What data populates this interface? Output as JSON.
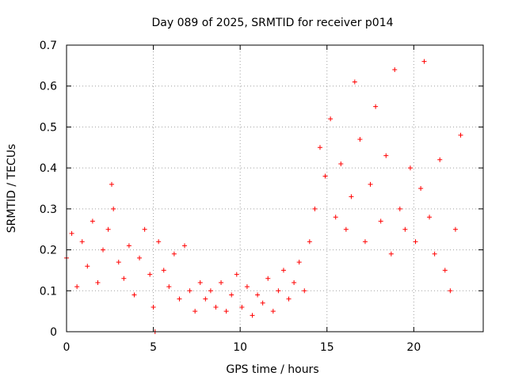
{
  "chart_data": {
    "type": "scatter",
    "title": "Day 089 of 2025, SRMTID for receiver p014",
    "xlabel": "GPS time / hours",
    "ylabel": "SRMTID / TECUs",
    "xlim": [
      0,
      24
    ],
    "ylim": [
      0,
      0.7
    ],
    "xticks": [
      0,
      5,
      10,
      15,
      20
    ],
    "xtick_labels": [
      "0",
      "5",
      "10",
      "15",
      "20"
    ],
    "yticks": [
      0,
      0.1,
      0.2,
      0.3,
      0.4,
      0.5,
      0.6,
      0.7
    ],
    "ytick_labels": [
      "0",
      "0.1",
      "0.2",
      "0.3",
      "0.4",
      "0.5",
      "0.6",
      "0.7"
    ],
    "grid": true,
    "marker": "plus",
    "color": "#ff0000",
    "series": [
      {
        "name": "SRMTID",
        "x": [
          0.0,
          0.3,
          0.6,
          0.9,
          1.2,
          1.5,
          1.8,
          2.1,
          2.4,
          2.6,
          2.7,
          3.0,
          3.3,
          3.6,
          3.9,
          4.2,
          4.5,
          4.8,
          5.0,
          5.1,
          5.3,
          5.6,
          5.9,
          6.2,
          6.5,
          6.8,
          7.1,
          7.4,
          7.7,
          8.0,
          8.3,
          8.6,
          8.9,
          9.2,
          9.5,
          9.8,
          10.1,
          10.4,
          10.7,
          11.0,
          11.3,
          11.6,
          11.9,
          12.2,
          12.5,
          12.8,
          13.1,
          13.4,
          13.7,
          14.0,
          14.3,
          14.6,
          14.9,
          15.2,
          15.5,
          15.8,
          16.1,
          16.4,
          16.6,
          16.9,
          17.2,
          17.5,
          17.8,
          18.1,
          18.4,
          18.7,
          18.9,
          19.2,
          19.5,
          19.8,
          20.1,
          20.4,
          20.6,
          20.9,
          21.2,
          21.5,
          21.8,
          22.1,
          22.4,
          22.7
        ],
        "y": [
          0.18,
          0.24,
          0.11,
          0.22,
          0.16,
          0.27,
          0.12,
          0.2,
          0.25,
          0.36,
          0.3,
          0.17,
          0.13,
          0.21,
          0.09,
          0.18,
          0.25,
          0.14,
          0.06,
          0.0,
          0.22,
          0.15,
          0.11,
          0.19,
          0.08,
          0.21,
          0.1,
          0.05,
          0.12,
          0.08,
          0.1,
          0.06,
          0.12,
          0.05,
          0.09,
          0.14,
          0.06,
          0.11,
          0.04,
          0.09,
          0.07,
          0.13,
          0.05,
          0.1,
          0.15,
          0.08,
          0.12,
          0.17,
          0.1,
          0.22,
          0.3,
          0.45,
          0.38,
          0.52,
          0.28,
          0.41,
          0.25,
          0.33,
          0.61,
          0.47,
          0.22,
          0.36,
          0.55,
          0.27,
          0.43,
          0.19,
          0.64,
          0.3,
          0.25,
          0.4,
          0.22,
          0.35,
          0.66,
          0.28,
          0.19,
          0.42,
          0.15,
          0.1,
          0.25,
          0.48
        ]
      }
    ]
  }
}
